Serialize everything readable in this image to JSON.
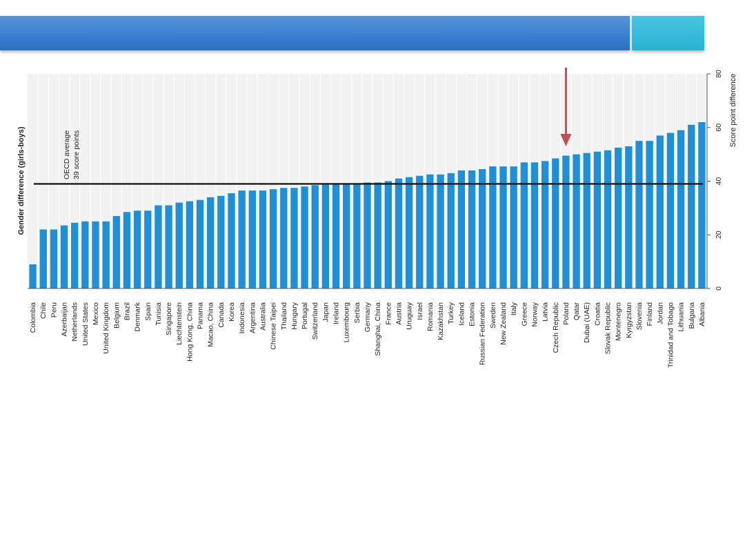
{
  "colors": {
    "bar": "#1f8fd6",
    "oecd_line": "#1a1a1a",
    "arrow": "#c0504d",
    "header": "#3a7fd0",
    "header_accent": "#2bb2d2"
  },
  "chart_data": {
    "type": "bar",
    "orientation": "vertical, figure rotated 90 degrees",
    "ylabel_left": "Gender difference (girls-boys)",
    "ylabel_right": "Score point difference",
    "ylim": [
      0,
      80
    ],
    "yticks": [
      0,
      20,
      40,
      60,
      80
    ],
    "grid": "vertical separators between countries",
    "reference_line": {
      "label_line1": "OECD average",
      "label_line2": "39 score points",
      "value": 39
    },
    "highlight": {
      "category": "Poland",
      "marker": "arrow"
    },
    "categories": [
      "Colombia",
      "Chile",
      "Peru",
      "Azerbaijan",
      "Netherlands",
      "United States",
      "Mexico",
      "United Kingdom",
      "Belgium",
      "Brazil",
      "Denmark",
      "Spain",
      "Tunisia",
      "Singapore",
      "Liechtenstein",
      "Hong Kong, China",
      "Panama",
      "Macao, China",
      "Canada",
      "Korea",
      "Indonesia",
      "Argentina",
      "Australia",
      "Chinese Taipei",
      "Thailand",
      "Hungary",
      "Portugal",
      "Switzerland",
      "Japan",
      "Ireland",
      "Luxembourg",
      "Serbia",
      "Germany",
      "Shanghai, China",
      "France",
      "Austria",
      "Uruguay",
      "Israel",
      "Romania",
      "Kazakhstan",
      "Turkey",
      "Iceland",
      "Estonia",
      "Russian Federation",
      "Sweden",
      "New Zealand",
      "Italy",
      "Greece",
      "Norway",
      "Latvia",
      "Czech Republic",
      "Poland",
      "Qatar",
      "Dubai (UAE)",
      "Croatia",
      "Slovak Republic",
      "Montenegro",
      "Kyrgyzstan",
      "Slovenia",
      "Finland",
      "Jordan",
      "Trinidad and Tobago",
      "Lithuania",
      "Bulgaria",
      "Albania"
    ],
    "values": [
      9,
      22,
      22,
      23.5,
      24.5,
      25,
      25,
      25,
      27,
      28.5,
      29,
      29,
      31,
      31,
      32,
      32.5,
      33,
      34,
      34.5,
      35.5,
      36.5,
      36.5,
      36.5,
      37,
      37.5,
      37.5,
      38,
      38.5,
      39,
      39,
      39,
      39,
      39.5,
      39.5,
      40,
      41,
      41.5,
      42,
      42.5,
      42.5,
      43,
      44,
      44,
      44.5,
      45.5,
      45.5,
      45.5,
      47,
      47,
      47.5,
      48.5,
      49.5,
      50,
      50.5,
      51,
      51.5,
      52.5,
      53,
      55,
      55,
      57,
      58,
      59,
      61,
      62
    ]
  }
}
